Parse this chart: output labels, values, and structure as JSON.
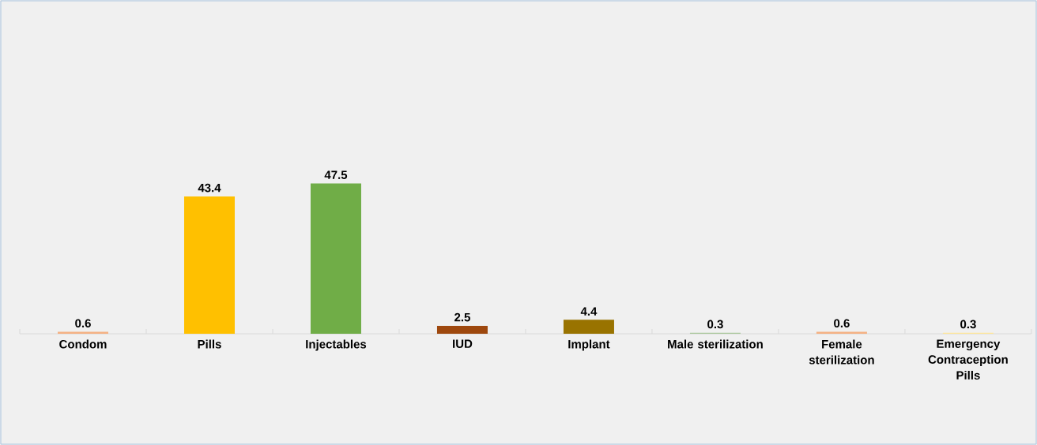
{
  "chart_data": {
    "type": "bar",
    "categories": [
      "Condom",
      "Pills",
      "Injectables",
      "IUD",
      "Implant",
      "Male sterilization",
      "Female sterilization",
      "Emergency Contraception Pills"
    ],
    "values": [
      0.6,
      43.4,
      47.5,
      2.5,
      4.4,
      0.3,
      0.6,
      0.3
    ],
    "colors": [
      "#f4b183",
      "#ffc000",
      "#70ad47",
      "#9e480e",
      "#997300",
      "#a9c79a",
      "#f4b183",
      "#ffe699"
    ],
    "tick_labels": "x",
    "data_labels": true
  }
}
